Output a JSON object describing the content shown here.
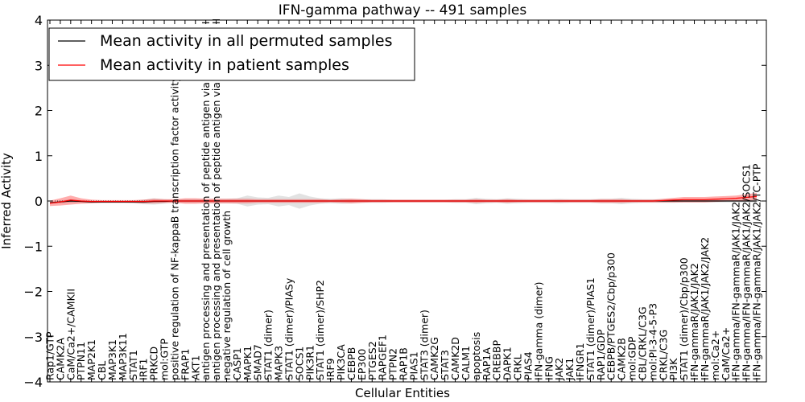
{
  "chart_data": {
    "type": "line",
    "title": "IFN-gamma pathway -- 491 samples",
    "xlabel": "Cellular Entities",
    "ylabel": "Inferred Activity",
    "ylim": [
      -4,
      4
    ],
    "yticks": [
      -4,
      -3,
      -2,
      -1,
      0,
      1,
      2,
      3,
      4
    ],
    "ytick_labels": [
      "−4",
      "−3",
      "−2",
      "−1",
      "0",
      "1",
      "2",
      "3",
      "4"
    ],
    "legend": {
      "location": "top-left",
      "entries": [
        {
          "label": "Mean activity in all permuted samples",
          "color": "#000000"
        },
        {
          "label": "Mean activity in patient samples",
          "color": "#ff0000"
        }
      ]
    },
    "categories": [
      "Rap1/GTP",
      "CAMK2A",
      "CaM/Ca2+/CAMKII",
      "PTPN11",
      "MAP2K1",
      "CBL",
      "MAP3K1",
      "MAP3K11",
      "STAT1",
      "IRF1",
      "PRKCD",
      "mol:GTP",
      "positive regulation of NF-kappaB transcription factor activity",
      "FRAP1",
      "AKT1",
      "antigen processing and presentation of peptide antigen via MHC class I",
      "antigen processing and presentation of peptide antigen via MHC class II",
      "negative regulation of cell growth",
      "CASP1",
      "MAPK1",
      "SMAD7",
      "STAT1 (dimer)",
      "MAPK3",
      "STAT1 (dimer)/PIASy",
      "SOCS1",
      "PIK3R1",
      "STAT1 (dimer)/SHP2",
      "IRF9",
      "PIK3CA",
      "CEBPB",
      "EP300",
      "PTGES2",
      "RAPGEF1",
      "PTPN2",
      "RAP1B",
      "PIAS1",
      "STAT3 (dimer)",
      "CAMK2G",
      "STAT3",
      "CAMK2D",
      "CALM1",
      "apoptosis",
      "RAP1A",
      "CREBBP",
      "DAPK1",
      "CRKL",
      "PIAS4",
      "IFN-gamma (dimer)",
      "IFNG",
      "JAK2",
      "JAK1",
      "IFNGR1",
      "STAT1 (dimer)/PIAS1",
      "RAP1/GDP",
      "CEBPB/PTGES2/Cbp/p300",
      "CAMK2B",
      "mol:GDP",
      "CBL/CRKL/C3G",
      "mol:PI-3-4-5-P3",
      "CRKL/C3G",
      "PI3K",
      "STAT1 (dimer)/Cbp/p300",
      "IFN-gammaR/JAK1/JAK2",
      "IFN-gammaR/JAK1/JAK2/JAK2",
      "mol:Ca2+",
      "CaM/Ca2+",
      "IFN-gamma/IFN-gammaR/JAK1/JAK2",
      "IFN-gamma/IFN-gammaR/JAK1/JAK2/SOCS1",
      "IFN-gamma/IFN-gammaR/JAK1/JAK2/TC-PTP"
    ],
    "series": [
      {
        "name": "Mean activity in all permuted samples",
        "color": "#000000",
        "values": [
          -0.04,
          -0.02,
          0.0,
          -0.01,
          -0.02,
          -0.02,
          -0.02,
          -0.02,
          -0.02,
          -0.02,
          -0.01,
          -0.01,
          0.0,
          0.0,
          0.0,
          0.0,
          0.0,
          0.0,
          0.0,
          0.0,
          0.0,
          0.0,
          0.0,
          0.0,
          0.0,
          0.0,
          0.0,
          0.0,
          0.0,
          0.0,
          0.0,
          0.0,
          0.0,
          0.0,
          0.0,
          0.0,
          0.0,
          0.0,
          0.0,
          0.0,
          0.0,
          0.0,
          0.0,
          0.0,
          0.0,
          0.0,
          0.0,
          0.0,
          0.0,
          0.0,
          0.0,
          0.0,
          0.0,
          0.0,
          0.0,
          0.0,
          0.0,
          0.0,
          0.0,
          0.0,
          0.0,
          0.0,
          0.0,
          0.0,
          0.0,
          0.0,
          0.0,
          0.0,
          0.0
        ],
        "band": [
          0.02,
          0.03,
          0.04,
          0.03,
          0.02,
          0.02,
          0.02,
          0.02,
          0.03,
          0.05,
          0.07,
          0.05,
          0.03,
          0.04,
          0.04,
          0.04,
          0.05,
          0.05,
          0.06,
          0.12,
          0.08,
          0.07,
          0.12,
          0.09,
          0.17,
          0.1,
          0.06,
          0.05,
          0.06,
          0.05,
          0.04,
          0.04,
          0.04,
          0.03,
          0.03,
          0.03,
          0.03,
          0.03,
          0.03,
          0.04,
          0.04,
          0.07,
          0.05,
          0.04,
          0.06,
          0.05,
          0.04,
          0.04,
          0.04,
          0.05,
          0.04,
          0.04,
          0.04,
          0.05,
          0.05,
          0.07,
          0.05,
          0.04,
          0.04,
          0.04,
          0.04,
          0.03,
          0.03,
          0.03,
          0.03,
          0.03,
          0.03,
          0.03,
          0.03
        ]
      },
      {
        "name": "Mean activity in patient samples",
        "color": "#ff0000",
        "values": [
          -0.05,
          -0.02,
          0.02,
          0.0,
          -0.01,
          -0.01,
          -0.01,
          -0.01,
          -0.01,
          -0.01,
          0.0,
          0.0,
          0.0,
          0.0,
          0.0,
          0.0,
          0.0,
          0.0,
          0.0,
          0.0,
          0.0,
          0.0,
          0.0,
          0.0,
          0.0,
          0.0,
          0.0,
          0.0,
          0.0,
          0.0,
          0.0,
          0.0,
          0.0,
          0.0,
          0.0,
          0.0,
          0.0,
          0.0,
          0.0,
          0.0,
          0.0,
          0.0,
          0.0,
          0.0,
          0.0,
          0.0,
          0.0,
          0.0,
          0.0,
          0.0,
          0.0,
          0.0,
          0.0,
          0.0,
          0.0,
          0.0,
          0.0,
          0.0,
          0.0,
          0.01,
          0.02,
          0.03,
          0.03,
          0.03,
          0.04,
          0.05,
          0.06,
          0.08,
          0.1
        ],
        "band": [
          0.06,
          0.08,
          0.1,
          0.06,
          0.04,
          0.03,
          0.03,
          0.03,
          0.03,
          0.04,
          0.05,
          0.04,
          0.04,
          0.06,
          0.06,
          0.05,
          0.05,
          0.05,
          0.05,
          0.05,
          0.04,
          0.04,
          0.04,
          0.04,
          0.04,
          0.04,
          0.04,
          0.03,
          0.04,
          0.05,
          0.04,
          0.03,
          0.03,
          0.03,
          0.03,
          0.03,
          0.03,
          0.03,
          0.03,
          0.03,
          0.03,
          0.04,
          0.03,
          0.03,
          0.04,
          0.03,
          0.03,
          0.03,
          0.03,
          0.03,
          0.03,
          0.03,
          0.03,
          0.04,
          0.04,
          0.04,
          0.03,
          0.03,
          0.03,
          0.04,
          0.05,
          0.06,
          0.06,
          0.06,
          0.06,
          0.06,
          0.06,
          0.07,
          0.08
        ]
      }
    ]
  }
}
